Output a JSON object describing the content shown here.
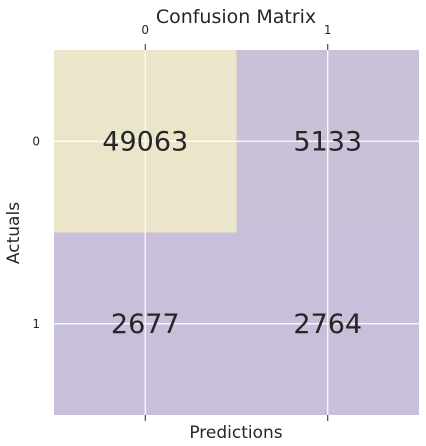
{
  "chart_data": {
    "type": "heatmap",
    "title": "Confusion Matrix",
    "xlabel": "Predictions",
    "ylabel": "Actuals",
    "x_tick_labels": [
      "0",
      "1"
    ],
    "y_tick_labels": [
      "0",
      "1"
    ],
    "x_ticks_position": "top",
    "grid": true,
    "values": [
      [
        49063,
        5133
      ],
      [
        2677,
        2764
      ]
    ],
    "colors": {
      "high": "#ebe6c9",
      "low": "#c8bfda",
      "grid": "#ffffff",
      "text": "#262626"
    }
  }
}
